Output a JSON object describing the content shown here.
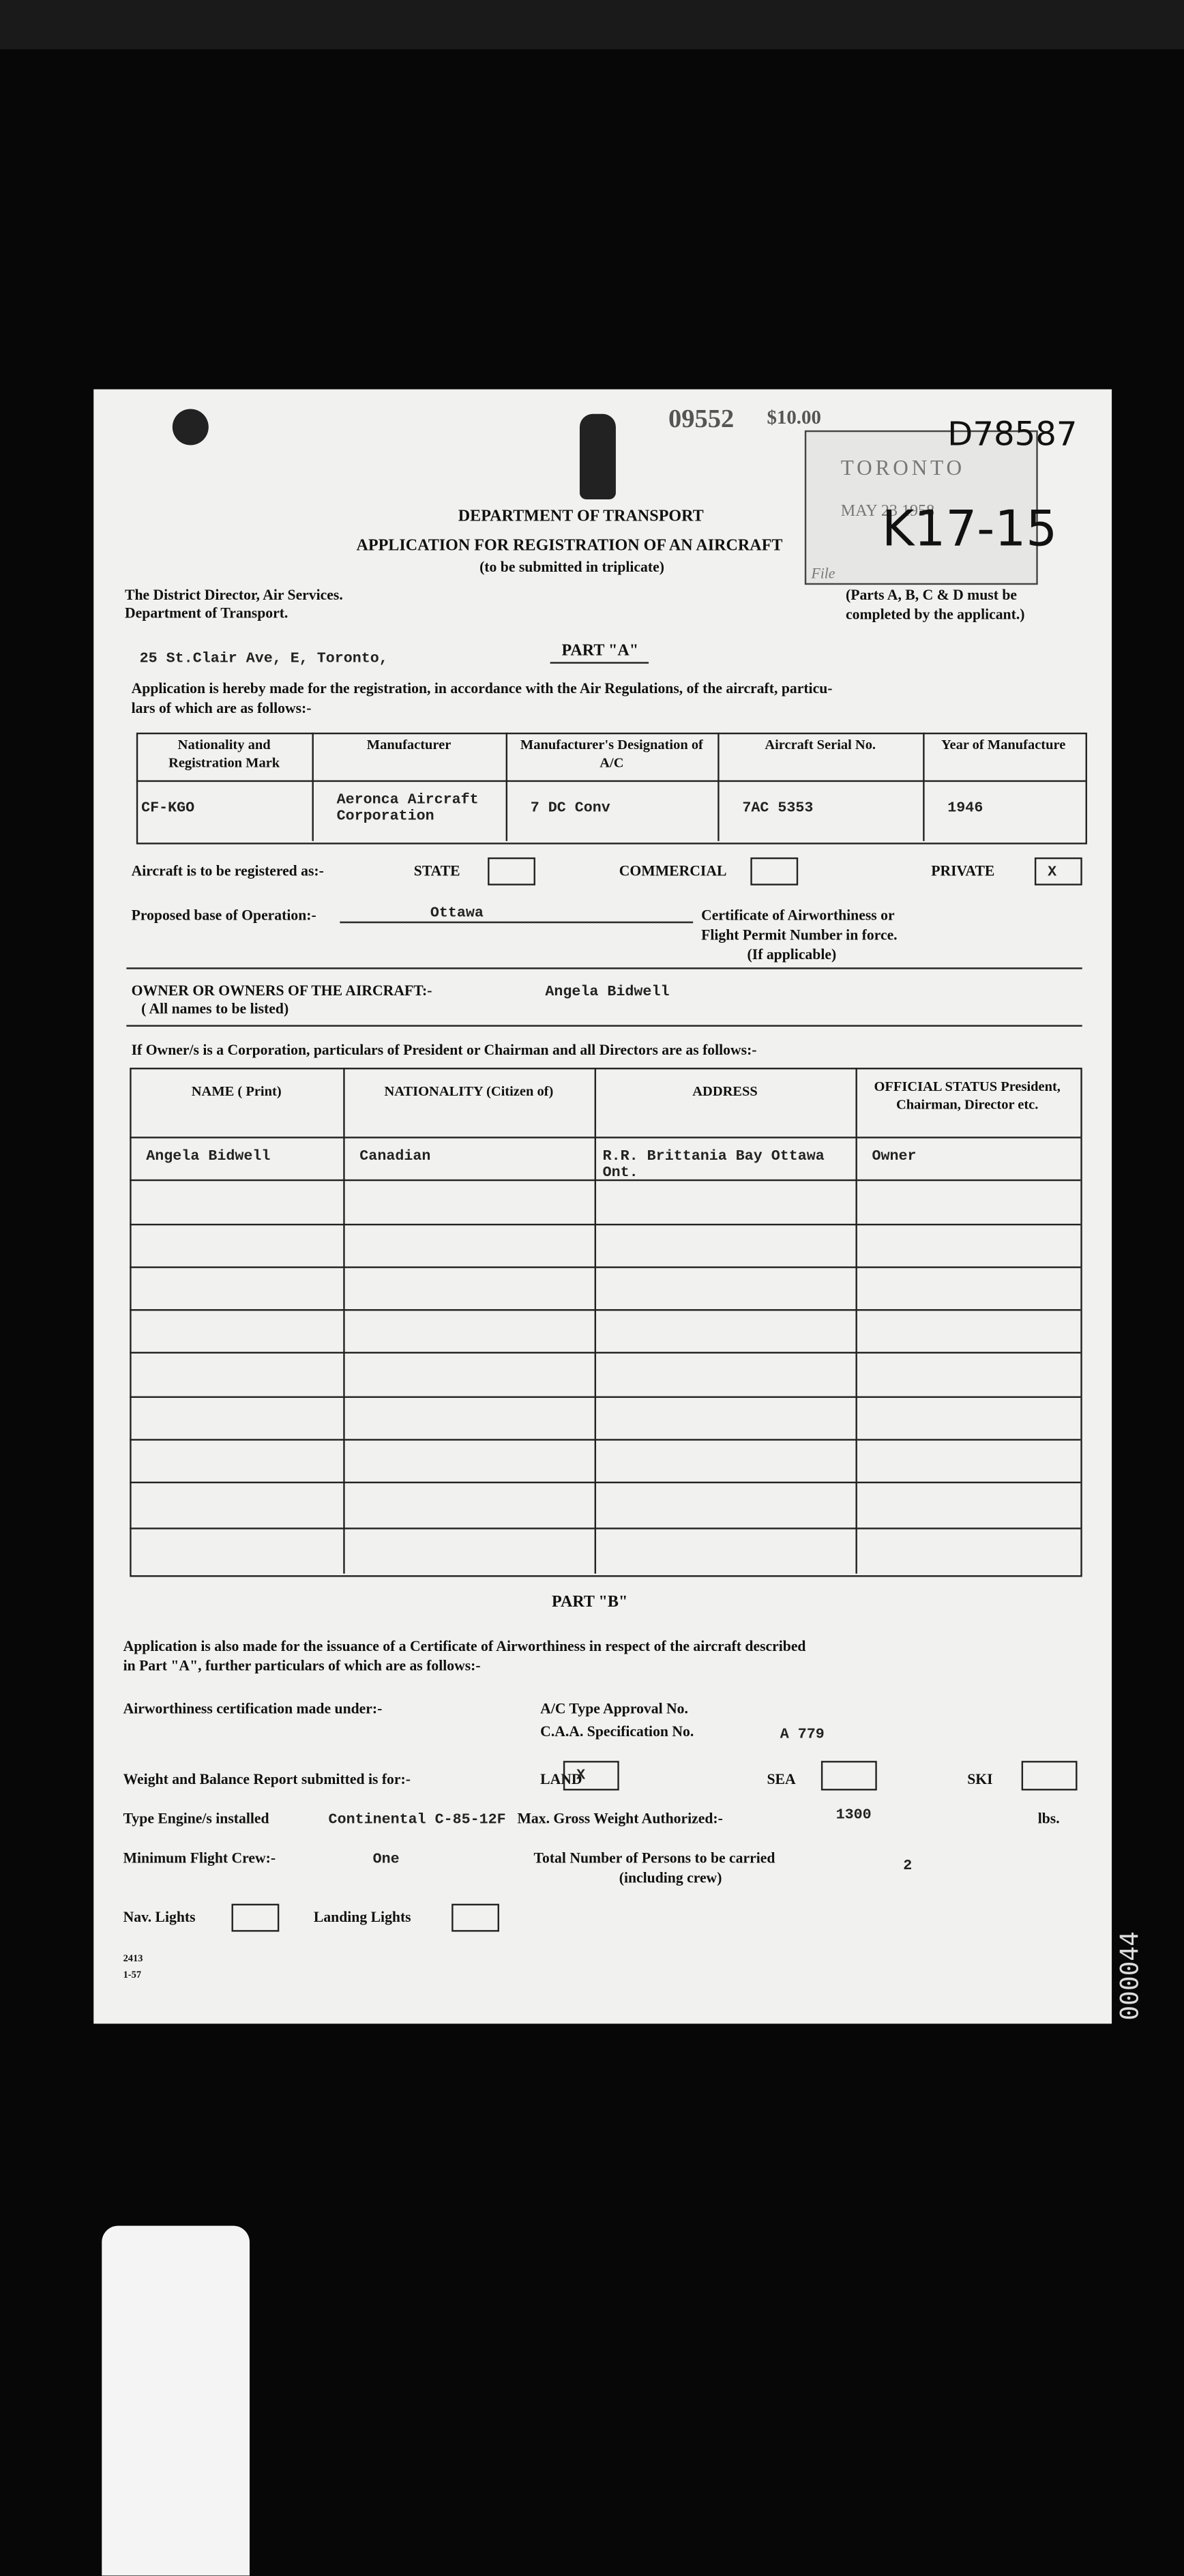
{
  "stamp": {
    "number": "09552",
    "fee": "$10.00",
    "office": "TORONTO",
    "date": "MAY 23 1958",
    "file_label": "File",
    "handwritten_ref": "D78587",
    "file_number": "K17-15"
  },
  "header": {
    "department": "DEPARTMENT OF TRANSPORT",
    "title": "APPLICATION FOR REGISTRATION OF AN AIRCRAFT",
    "subtitle": "(to be submitted in triplicate)"
  },
  "addressee": [
    "The District Director, Air Services.",
    "Department of Transport."
  ],
  "note": [
    "(Parts A, B, C & D must be",
    "completed by the applicant.)"
  ],
  "applicant_address": "25 St.Clair Ave, E, Toronto,",
  "part_a": {
    "heading": "PART \"A\"",
    "intro": [
      "Application is hereby made for the registration, in accordance with the Air Regulations, of the aircraft, particu-",
      "lars of which are as follows:-"
    ],
    "aircraft_table": {
      "headers": [
        "Nationality and Registration Mark",
        "Manufacturer",
        "Manufacturer's Designation of A/C",
        "Aircraft Serial No.",
        "Year of Manufacture"
      ],
      "values": [
        "CF-KGO",
        "Aeronca Aircraft Corporation",
        "7 DC Conv",
        "7AC 5353",
        "1946"
      ]
    },
    "registration": {
      "label": "Aircraft is to be registered as:-",
      "options": [
        {
          "label": "STATE"
        },
        {
          "label": "COMMERCIAL"
        },
        {
          "label": "PRIVATE",
          "mark": "X"
        }
      ]
    },
    "base": {
      "label": "Proposed base of Operation:-",
      "value": "Ottawa"
    },
    "certificate": [
      "Certificate of Airworthiness or",
      "Flight Permit Number in force.",
      "(If applicable)"
    ],
    "owners": {
      "label": "OWNER OR OWNERS OF THE AIRCRAFT:-",
      "note": "( All names to be listed)",
      "value": "Angela Bidwell"
    },
    "corporation_intro": "If Owner/s is a Corporation, particulars of President or Chairman and all Directors are as follows:-",
    "owner_table": {
      "headers": [
        "NAME ( Print)",
        "NATIONALITY (Citizen of)",
        "ADDRESS",
        "OFFICIAL STATUS President, Chairman, Director etc."
      ],
      "rows": [
        [
          "Angela Bidwell",
          "Canadian",
          "R.R. Brittania Bay Ottawa Ont.",
          "Owner"
        ]
      ]
    }
  },
  "part_b": {
    "heading": "PART \"B\"",
    "intro": [
      "Application is also made for the issuance of a Certificate of Airworthiness in respect of the aircraft described",
      "in Part \"A\", further particulars of which are as follows:-"
    ],
    "airworthiness_label": "Airworthiness certification made under:-",
    "type_approval_label": "A/C Type Approval No.",
    "specification": {
      "label": "C.A.A. Specification No.",
      "value": "A 779"
    },
    "weight_label": "Weight and Balance Report submitted is for:-",
    "weight_options": [
      {
        "label": "LAND",
        "mark": "X"
      },
      {
        "label": "SEA"
      },
      {
        "label": "SKI"
      }
    ],
    "engine": {
      "label": "Type Engine/s installed",
      "value": "Continental C-85-12F"
    },
    "max_weight": {
      "label": "Max. Gross Weight Authorized:-",
      "value": "1300",
      "unit": "lbs."
    },
    "crew": {
      "label": "Minimum Flight Crew:-",
      "value": "One"
    },
    "persons": {
      "label": "Total Number of Persons to be carried",
      "note": "(including crew)",
      "value": "2"
    },
    "lights": [
      "Nav. Lights",
      "Landing Lights"
    ]
  },
  "form_number": [
    "2413",
    "1-57"
  ],
  "side_number": "000044"
}
